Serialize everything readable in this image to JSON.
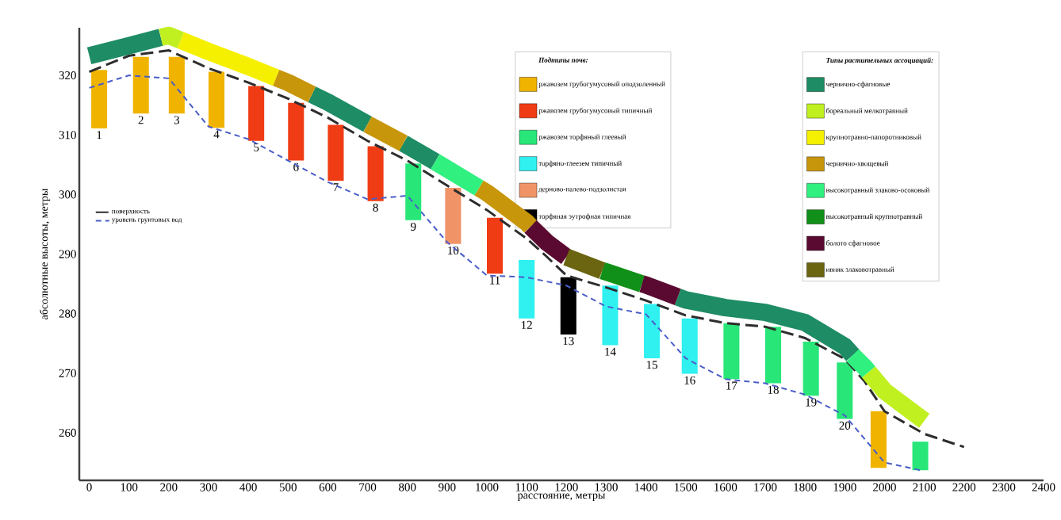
{
  "chart_data": {
    "type": "bar",
    "xlabel": "расстояние, метры",
    "ylabel": "абсолютные высоты, метры",
    "legend_title": "Подтипы почв:",
    "xlim": [
      -25,
      2400
    ],
    "ylim": [
      252,
      328
    ],
    "xticks": [
      0,
      100,
      200,
      300,
      400,
      500,
      600,
      700,
      800,
      900,
      1000,
      1100,
      1200,
      1300,
      1400,
      1500,
      1600,
      1700,
      1800,
      1900,
      2000,
      2100,
      2200,
      2300,
      2400
    ],
    "yticks": [
      260,
      270,
      280,
      290,
      300,
      310,
      320
    ],
    "legend": "top",
    "series": [
      {
        "name": "ржавозем грубогумусовый оподзоленный",
        "color": "#f0b400",
        "x": [
          25,
          130,
          220,
          320,
          1985
        ],
        "base": [
          311.1,
          313.6,
          313.6,
          311.2,
          254.1
        ],
        "values": [
          9.8,
          9.5,
          9.5,
          9.4,
          9.5
        ]
      },
      {
        "name": "ржавозем грубогумусовый типичный",
        "color": "#f03c14",
        "x": [
          420,
          520,
          620,
          720,
          1020
        ],
        "base": [
          309.0,
          305.7,
          302.3,
          298.9,
          286.7
        ],
        "values": [
          9.2,
          9.7,
          9.4,
          9.2,
          9.4
        ]
      },
      {
        "name": "ржавозем торфяный глеевый",
        "color": "#28e678",
        "x": [
          815,
          1615,
          1720,
          1815,
          1900,
          2090
        ],
        "base": [
          295.7,
          269.0,
          268.3,
          266.2,
          262.3,
          253.7
        ],
        "values": [
          9.5,
          9.4,
          9.5,
          9.1,
          9.5,
          4.8
        ]
      },
      {
        "name": "торфяно-глеезем типичный",
        "color": "#30f0f0",
        "x": [
          1100,
          1310,
          1415,
          1510
        ],
        "base": [
          279.2,
          274.7,
          272.5,
          269.9
        ],
        "values": [
          9.8,
          10,
          9.1,
          9.3
        ]
      },
      {
        "name": "дерново-палево-подзолистая",
        "color": "#f09468",
        "x": [
          915
        ],
        "base": [
          291.7
        ],
        "values": [
          9.4
        ]
      },
      {
        "name": "торфяная эутрофная типичная",
        "color": "#000000",
        "x": [
          1205
        ],
        "base": [
          276.5
        ],
        "values": [
          9.6
        ]
      },
      {
        "type": "line",
        "line_style": "dashed",
        "name": "поверхность",
        "color": "#2d2d2d",
        "x": [
          0,
          100,
          200,
          300,
          400,
          500,
          600,
          700,
          800,
          900,
          1000,
          1100,
          1150,
          1200,
          1300,
          1400,
          1500,
          1600,
          1700,
          1800,
          1900,
          1950,
          2000,
          2100,
          2200
        ],
        "values": [
          320.6,
          323.3,
          324.2,
          321.2,
          318.8,
          316.1,
          312.9,
          309,
          305.7,
          301.5,
          297.4,
          292.6,
          289.6,
          286.4,
          284.4,
          282.2,
          279.7,
          278.4,
          277.8,
          275.9,
          272.4,
          268.6,
          263.6,
          259.8,
          257.6
        ]
      },
      {
        "type": "line",
        "line_style": "dotted",
        "name": "уровень грунтовых вод",
        "color": "#4a5ec8",
        "x": [
          0,
          100,
          200,
          300,
          400,
          500,
          600,
          700,
          800,
          900,
          1000,
          1100,
          1200,
          1300,
          1400,
          1500,
          1600,
          1700,
          1800,
          1900,
          2000,
          2090
        ],
        "values": [
          317.9,
          320,
          319.5,
          311.4,
          309.3,
          305.7,
          302.1,
          299.2,
          299.8,
          292,
          286.4,
          286.1,
          284.7,
          281.2,
          279.9,
          272.5,
          269,
          268.3,
          266.4,
          262.9,
          255,
          253.7
        ]
      },
      {
        "type": "line",
        "line_style": "solid",
        "name": "чернично-сфагновые",
        "color": "#1e8c64",
        "x": [
          0,
          100,
          180,
          370,
          560,
          600,
          700,
          745,
          790,
          870,
          1175,
          1480,
          1500,
          1600,
          1700,
          1800,
          1900,
          1920
        ],
        "values": [
          323.3,
          325,
          326.4,
          null,
          316.8,
          315.5,
          311.8,
          null,
          308.6,
          305.5,
          null,
          282.8,
          282.3,
          281,
          280.2,
          278.5,
          274.5,
          273
        ]
      },
      {
        "type": "line",
        "line_style": "solid",
        "name": "бореальный мелкотравный",
        "color": "#c0f020",
        "x": [
          180,
          200,
          230,
          1100,
          1960,
          2000,
          2100
        ],
        "values": [
          326.4,
          326.7,
          325.9,
          null,
          270.2,
          267,
          262
        ]
      },
      {
        "type": "line",
        "line_style": "solid",
        "name": "крупнотравно-папоротниковый",
        "color": "#f5f000",
        "x": [
          230,
          300,
          400,
          470
        ],
        "values": [
          325.9,
          324,
          321.5,
          319.6
        ]
      },
      {
        "type": "line",
        "line_style": "solid",
        "name": "чернично-хвощевый",
        "color": "#c8960a",
        "x": [
          470,
          500,
          560,
          630,
          700,
          790,
          885,
          980,
          1000,
          1100,
          1110
        ],
        "values": [
          319.6,
          318.8,
          316.8,
          null,
          311.8,
          308.6,
          null,
          301.1,
          300.3,
          295.3,
          294.6
        ]
      },
      {
        "type": "line",
        "line_style": "solid",
        "name": "высокотравный злаково-осоковый",
        "color": "#30f080",
        "x": [
          870,
          900,
          980,
          1450,
          1920,
          1950,
          1960
        ],
        "values": [
          305.5,
          304.3,
          301.1,
          null,
          273,
          271,
          270.2
        ]
      },
      {
        "type": "line",
        "line_style": "solid",
        "name": "высокотравный крупнотравный",
        "color": "#109018",
        "x": [
          1290,
          1300,
          1390
        ],
        "values": [
          287.2,
          287,
          285
        ]
      },
      {
        "type": "line",
        "line_style": "solid",
        "name": "болото сфагновое",
        "color": "#5a0a30",
        "x": [
          1110,
          1150,
          1200,
          1295,
          1390,
          1400,
          1480
        ],
        "values": [
          294.6,
          292,
          289.5,
          null,
          285,
          284.8,
          282.8
        ]
      },
      {
        "type": "line",
        "line_style": "solid",
        "name": "ивняк злаковотравный",
        "color": "#6b6410",
        "x": [
          1200,
          1290
        ],
        "values": [
          289.5,
          287.2
        ]
      }
    ],
    "annotations": [
      "Типы растительных ассоциаций:",
      {
        "text": "1",
        "x": 25,
        "y": 311.1
      },
      {
        "text": "2",
        "x": 130,
        "y": 313.6
      },
      {
        "text": "3",
        "x": 220,
        "y": 313.6
      },
      {
        "text": "4",
        "x": 320,
        "y": 311.2
      },
      {
        "text": "5",
        "x": 420,
        "y": 309.0
      },
      {
        "text": "6",
        "x": 520,
        "y": 305.7
      },
      {
        "text": "7",
        "x": 620,
        "y": 302.3
      },
      {
        "text": "8",
        "x": 720,
        "y": 298.9
      },
      {
        "text": "9",
        "x": 815,
        "y": 295.7
      },
      {
        "text": "10",
        "x": 915,
        "y": 291.7
      },
      {
        "text": "11",
        "x": 1020,
        "y": 286.7
      },
      {
        "text": "12",
        "x": 1100,
        "y": 279.2
      },
      {
        "text": "13",
        "x": 1205,
        "y": 276.5
      },
      {
        "text": "14",
        "x": 1310,
        "y": 274.7
      },
      {
        "text": "15",
        "x": 1415,
        "y": 272.5
      },
      {
        "text": "16",
        "x": 1510,
        "y": 269.9
      },
      {
        "text": "17",
        "x": 1615,
        "y": 269.0
      },
      {
        "text": "18",
        "x": 1720,
        "y": 268.3
      },
      {
        "text": "19",
        "x": 1815,
        "y": 266.2
      },
      {
        "text": "20",
        "x": 1900,
        "y": 262.3
      }
    ]
  }
}
